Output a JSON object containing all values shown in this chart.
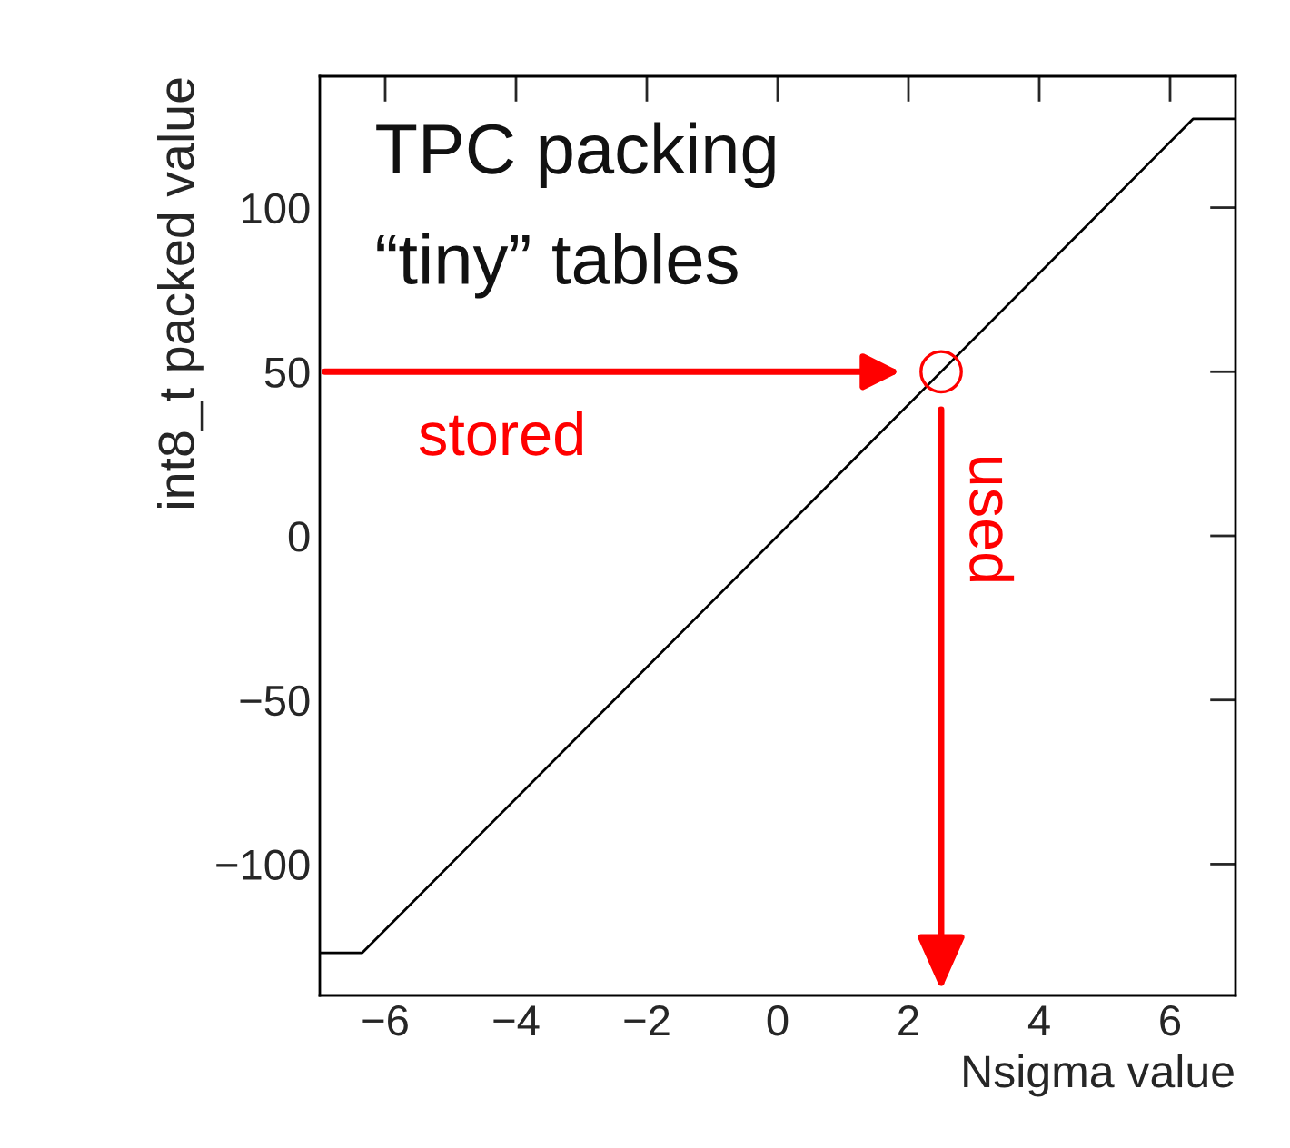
{
  "chart_data": {
    "type": "line",
    "title": "TPC packing",
    "subtitle": "“tiny” tables",
    "xlabel": "Nsigma value",
    "ylabel": "int8_t packed value",
    "x": [
      -7,
      -6.35,
      6.35,
      7
    ],
    "series": [
      {
        "color": "#000000",
        "values": [
          -127,
          -127,
          127,
          127
        ]
      },
      {
        "type": "scatter",
        "x": [
          2.5
        ],
        "values": [
          50
        ],
        "color": "#ff0000",
        "marker": "circle"
      }
    ],
    "xlim": [
      -7,
      7
    ],
    "ylim": [
      -140,
      140
    ],
    "xticks": [
      -6,
      -4,
      -2,
      0,
      2,
      4,
      6
    ],
    "yticks": [
      -100,
      -50,
      0,
      50,
      100
    ],
    "annotations": [
      "stored",
      "used"
    ],
    "grid": false,
    "marker": "none",
    "line_style": "solid"
  }
}
